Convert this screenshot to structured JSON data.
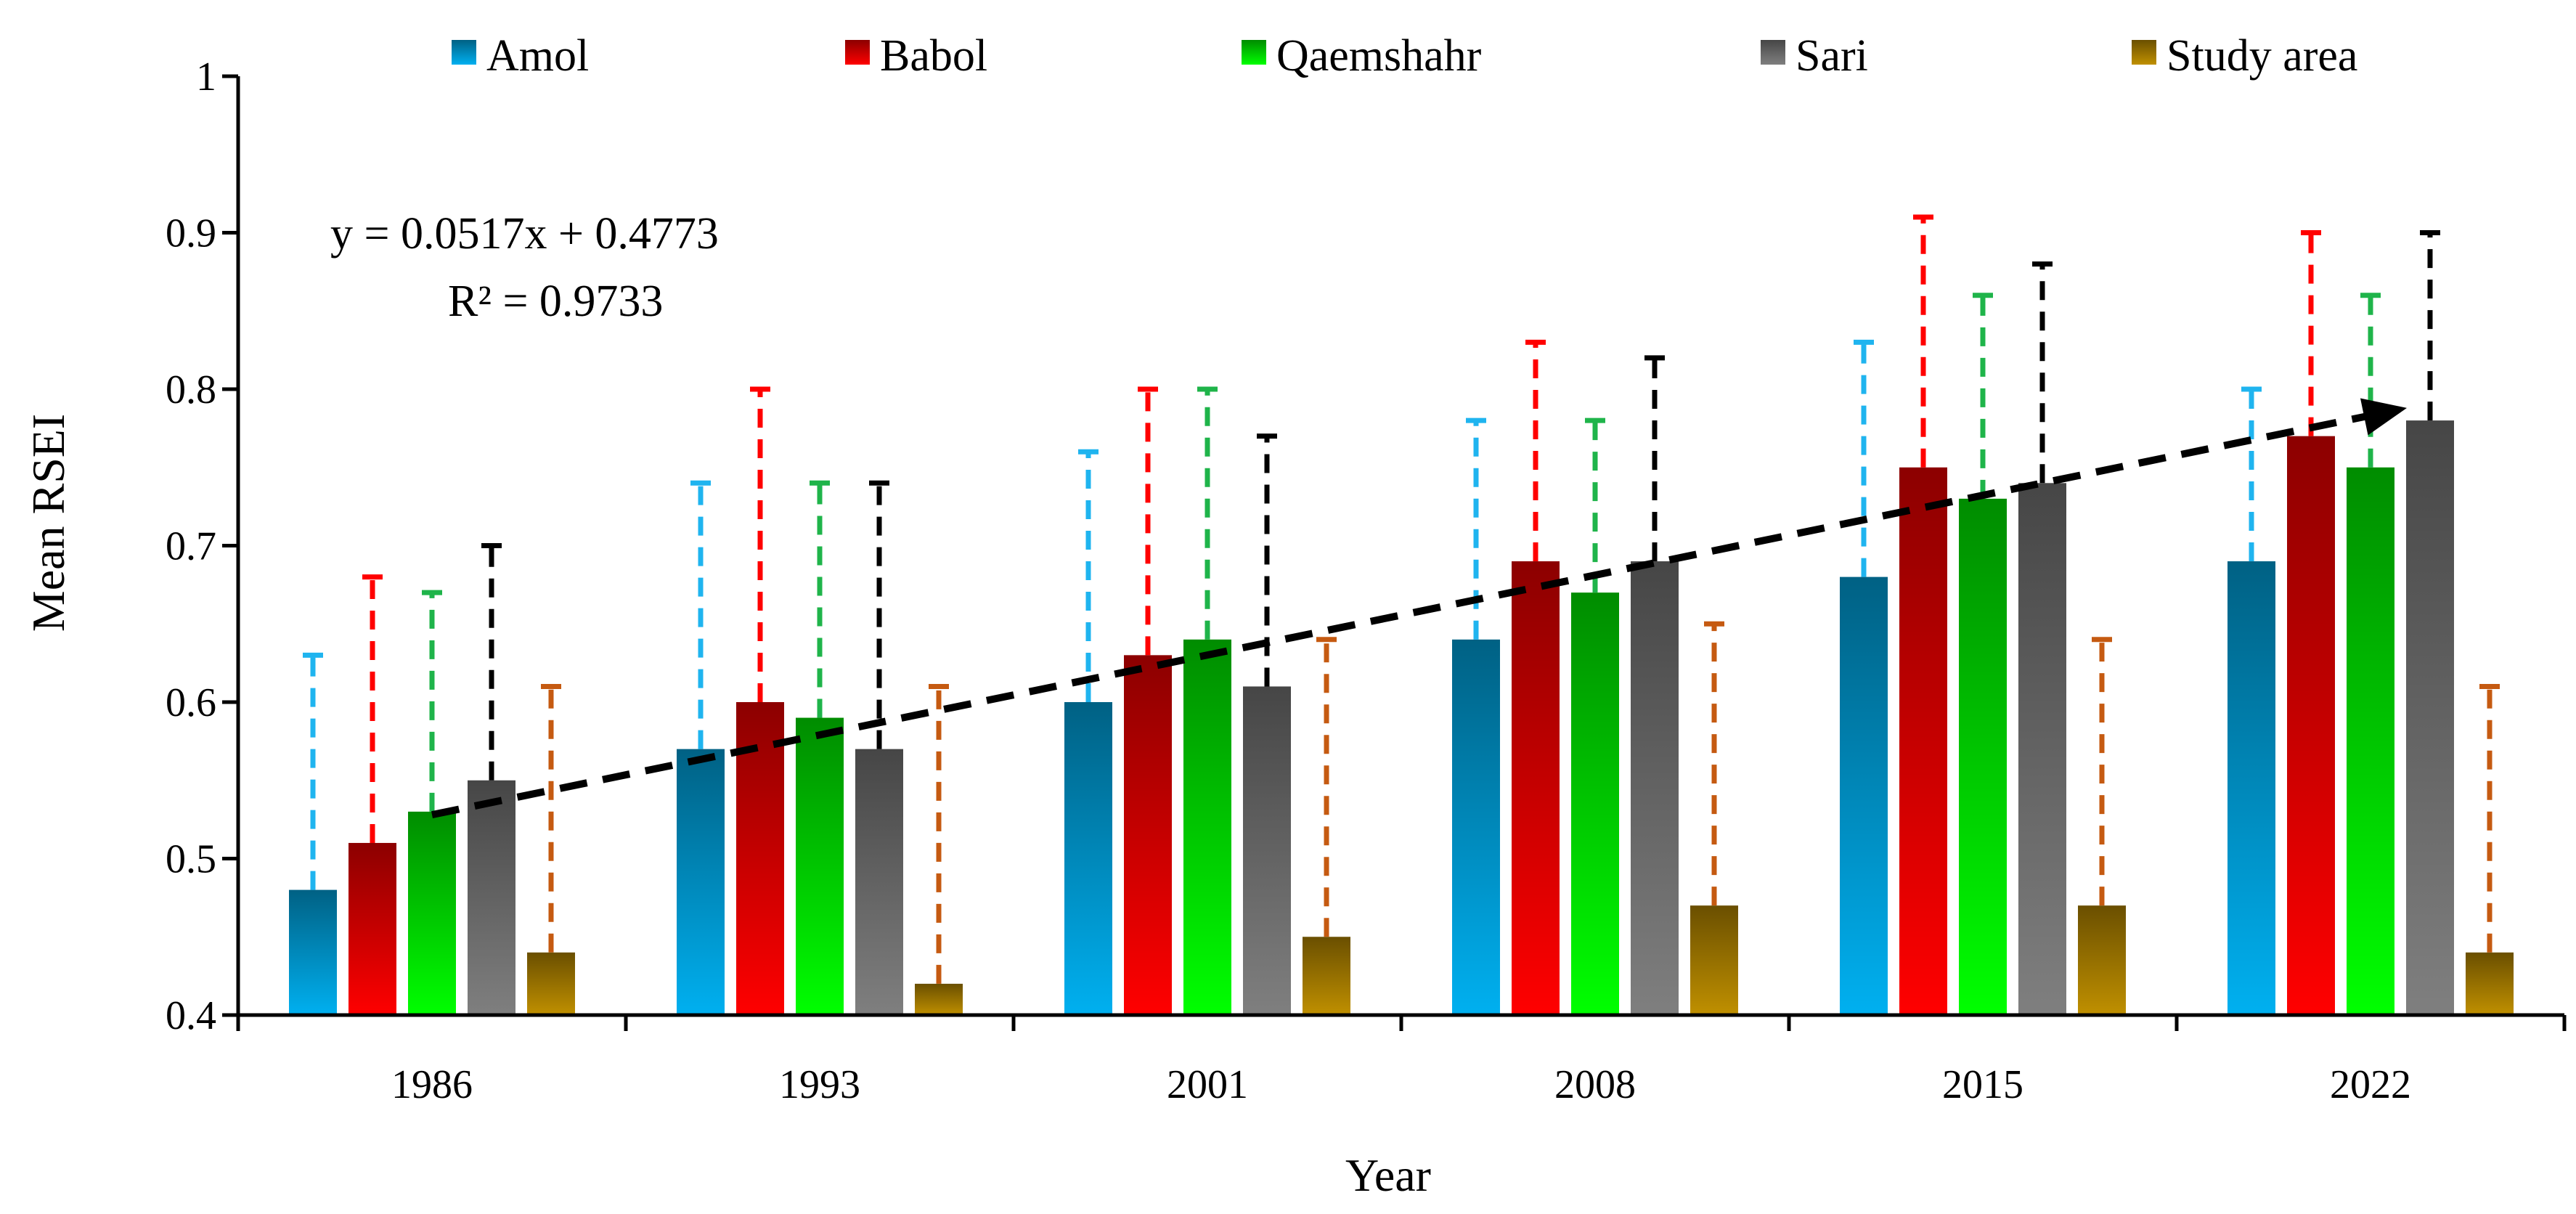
{
  "chart_data": {
    "type": "bar",
    "title": "",
    "xlabel": "Year",
    "ylabel": "Mean RSEI",
    "ylim": [
      0.4,
      1.0
    ],
    "yticks": [
      "0.4",
      "0.5",
      "0.6",
      "0.7",
      "0.8",
      "0.9",
      "1"
    ],
    "categories": [
      "1986",
      "1993",
      "2001",
      "2008",
      "2015",
      "2022"
    ],
    "legend_position": "top",
    "series": [
      {
        "name": "Amol",
        "color": "#00b0f0",
        "error_color": "#1fb4ef",
        "values": [
          0.48,
          0.57,
          0.6,
          0.64,
          0.68,
          0.69
        ],
        "upper": [
          0.63,
          0.74,
          0.76,
          0.78,
          0.83,
          0.8
        ]
      },
      {
        "name": "Babol",
        "color": "#ff0000",
        "error_color": "#ff0000",
        "values": [
          0.51,
          0.6,
          0.63,
          0.69,
          0.75,
          0.77
        ],
        "upper": [
          0.68,
          0.8,
          0.8,
          0.83,
          0.91,
          0.9
        ]
      },
      {
        "name": "Qaemshahr",
        "color": "#00ff00",
        "error_color": "#1fb44a",
        "values": [
          0.53,
          0.59,
          0.64,
          0.67,
          0.73,
          0.75
        ],
        "upper": [
          0.67,
          0.74,
          0.8,
          0.78,
          0.86,
          0.86
        ]
      },
      {
        "name": "Sari",
        "color": "#7f7f7f",
        "error_color": "#000000",
        "values": [
          0.55,
          0.57,
          0.61,
          0.69,
          0.74,
          0.78
        ],
        "upper": [
          0.7,
          0.74,
          0.77,
          0.82,
          0.88,
          0.9
        ]
      },
      {
        "name": "Study area",
        "color": "#c09000",
        "error_color": "#c55a11",
        "values": [
          0.44,
          0.42,
          0.45,
          0.47,
          0.47,
          0.44
        ],
        "upper": [
          0.61,
          0.61,
          0.64,
          0.65,
          0.64,
          0.61
        ]
      }
    ],
    "trendline": {
      "equation": "y = 0.0517x + 0.4773",
      "r_squared": "R² = 0.9733",
      "start": {
        "category": "1986",
        "value": 0.528
      },
      "end": {
        "category": "2022",
        "value": 0.788
      }
    }
  }
}
